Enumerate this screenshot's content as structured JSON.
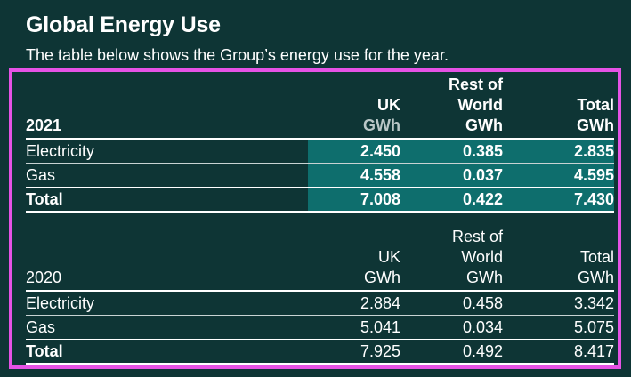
{
  "heading": {
    "title": "Global Energy Use",
    "subtitle": "The table below shows the Group’s energy use for the year."
  },
  "columns": {
    "uk": "UK",
    "uk_unit": "GWh",
    "row_line1": "Rest of",
    "row_line2": "World",
    "row_unit": "GWh",
    "total": "Total",
    "total_unit": "GWh"
  },
  "colors": {
    "background": "#0e3535",
    "highlight": "#0e6e6d",
    "annotation_frame": "#e552e5"
  },
  "tables": [
    {
      "year": "2021",
      "rows": [
        {
          "label": "Electricity",
          "uk": "2.450",
          "row": "0.385",
          "total": "2.835"
        },
        {
          "label": "Gas",
          "uk": "4.558",
          "row": "0.037",
          "total": "4.595"
        },
        {
          "label": "Total",
          "uk": "7.008",
          "row": "0.422",
          "total": "7.430"
        }
      ]
    },
    {
      "year": "2020",
      "rows": [
        {
          "label": "Electricity",
          "uk": "2.884",
          "row": "0.458",
          "total": "3.342"
        },
        {
          "label": "Gas",
          "uk": "5.041",
          "row": "0.034",
          "total": "5.075"
        },
        {
          "label": "Total",
          "uk": "7.925",
          "row": "0.492",
          "total": "8.417"
        }
      ]
    }
  ]
}
